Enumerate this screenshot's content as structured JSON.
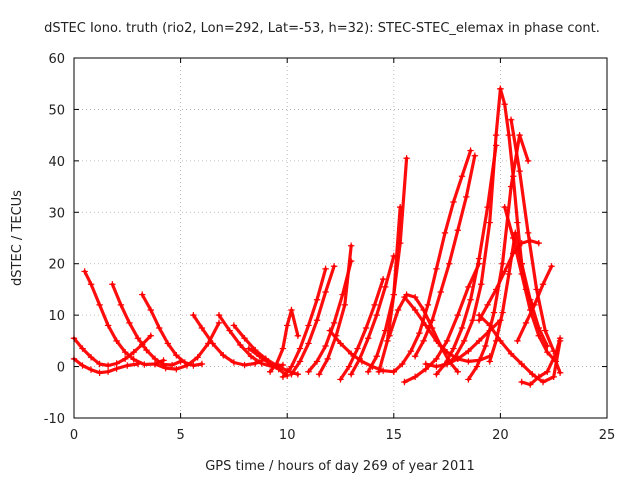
{
  "chart_data": {
    "type": "scatter",
    "title": "dSTEC Iono. truth (rio2, Lon=292, Lat=-53, h=32): STEC-STEC_elemax in phase cont.",
    "xlabel": "GPS time / hours of day 269 of year 2011",
    "ylabel": "dSTEC  / TECUs",
    "xlim": [
      0,
      25
    ],
    "ylim": [
      -10,
      60
    ],
    "xticks": [
      0,
      5,
      10,
      15,
      20,
      25
    ],
    "yticks": [
      -10,
      0,
      10,
      20,
      30,
      40,
      50,
      60
    ],
    "xtick_labels": [
      "0",
      "5",
      "10",
      "15",
      "20",
      "25"
    ],
    "ytick_labels": [
      "-10",
      "0",
      "10",
      "20",
      "30",
      "40",
      "50",
      "60"
    ],
    "grid": true,
    "marker": "+",
    "series_color": "#ff0000",
    "passes": [
      {
        "x": [
          0.0,
          0.4,
          0.8,
          1.2,
          1.6,
          2.0,
          2.4,
          2.8,
          3.2,
          3.6
        ],
        "y": [
          5.5,
          3.5,
          1.8,
          0.5,
          0.2,
          0.6,
          1.5,
          2.8,
          4.3,
          6.0
        ]
      },
      {
        "x": [
          0.0,
          0.4,
          0.8,
          1.2,
          1.6,
          2.0,
          2.5,
          3.0
        ],
        "y": [
          1.5,
          0.2,
          -0.6,
          -1.2,
          -1.0,
          -0.4,
          0.2,
          0.5
        ]
      },
      {
        "x": [
          0.5,
          0.8,
          1.2,
          1.6,
          2.0,
          2.4,
          2.8,
          3.3,
          3.8,
          4.2
        ],
        "y": [
          18.5,
          16.0,
          12.0,
          8.0,
          5.0,
          2.8,
          1.4,
          0.4,
          0.5,
          1.2
        ]
      },
      {
        "x": [
          1.8,
          2.2,
          2.6,
          3.0,
          3.4,
          3.8,
          4.2,
          4.6,
          5.0
        ],
        "y": [
          16.0,
          12.0,
          8.5,
          5.5,
          3.2,
          1.5,
          0.4,
          0.3,
          1.0
        ]
      },
      {
        "x": [
          3.2,
          3.6,
          4.0,
          4.4,
          4.8,
          5.2,
          5.6,
          6.0
        ],
        "y": [
          14.0,
          11.0,
          7.5,
          4.5,
          2.2,
          0.8,
          0.2,
          0.5
        ]
      },
      {
        "x": [
          3.8,
          4.3,
          4.8,
          5.3,
          5.8,
          6.3,
          6.8
        ],
        "y": [
          0.5,
          -0.3,
          -0.5,
          0.2,
          1.8,
          4.5,
          8.5
        ]
      },
      {
        "x": [
          5.6,
          6.0,
          6.5,
          7.0,
          7.5,
          8.0,
          8.5,
          9.0
        ],
        "y": [
          10.0,
          7.5,
          4.5,
          2.2,
          0.8,
          0.3,
          0.6,
          1.5
        ]
      },
      {
        "x": [
          6.8,
          7.3,
          7.8,
          8.3,
          8.8,
          9.3,
          9.8
        ],
        "y": [
          10.0,
          7.0,
          4.2,
          2.0,
          0.6,
          0.0,
          0.3
        ]
      },
      {
        "x": [
          7.5,
          8.0,
          8.5,
          9.0,
          9.5,
          10.0,
          10.5
        ],
        "y": [
          8.0,
          5.5,
          3.2,
          1.5,
          0.2,
          -0.8,
          -1.5
        ]
      },
      {
        "x": [
          8.2,
          8.7,
          9.2,
          9.6,
          10.0
        ],
        "y": [
          3.5,
          2.0,
          0.5,
          -0.5,
          -1.8
        ]
      },
      {
        "x": [
          9.2,
          9.5,
          9.8,
          10.0,
          10.2,
          10.5
        ],
        "y": [
          -1.0,
          0.5,
          3.5,
          8.0,
          11.0,
          6.0
        ]
      },
      {
        "x": [
          9.8,
          10.2,
          10.6,
          11.0,
          11.4,
          11.8
        ],
        "y": [
          -2.0,
          0.0,
          3.5,
          8.0,
          13.0,
          19.0
        ]
      },
      {
        "x": [
          10.2,
          10.6,
          11.0,
          11.4,
          11.8,
          12.2
        ],
        "y": [
          -1.5,
          1.0,
          4.5,
          9.0,
          14.5,
          19.5
        ]
      },
      {
        "x": [
          11.0,
          11.4,
          11.8,
          12.2,
          12.6,
          13.0
        ],
        "y": [
          -1.0,
          1.0,
          4.0,
          8.5,
          14.0,
          20.5
        ]
      },
      {
        "x": [
          11.5,
          11.9,
          12.3,
          12.7,
          13.0
        ],
        "y": [
          -1.5,
          1.5,
          6.0,
          12.0,
          23.5
        ]
      },
      {
        "x": [
          12.5,
          12.9,
          13.3,
          13.7,
          14.1,
          14.5
        ],
        "y": [
          -2.5,
          0.0,
          3.5,
          7.5,
          12.0,
          17.0
        ]
      },
      {
        "x": [
          13.0,
          13.4,
          13.8,
          14.2,
          14.6,
          15.0
        ],
        "y": [
          -1.5,
          1.5,
          5.5,
          10.0,
          15.5,
          21.5
        ]
      },
      {
        "x": [
          13.8,
          14.2,
          14.6,
          15.0,
          15.3,
          15.6
        ],
        "y": [
          -1.0,
          2.0,
          7.0,
          14.0,
          24.0,
          40.5
        ]
      },
      {
        "x": [
          14.3,
          14.7,
          15.0,
          15.3
        ],
        "y": [
          -1.0,
          5.0,
          14.0,
          31.0
        ]
      },
      {
        "x": [
          15.0,
          15.4,
          15.8,
          16.2,
          16.6,
          17.0,
          17.4,
          17.8,
          18.2,
          18.6
        ],
        "y": [
          -1.0,
          0.5,
          3.0,
          6.5,
          12.0,
          19.0,
          26.0,
          32.0,
          37.0,
          42.0
        ]
      },
      {
        "x": [
          14.8,
          15.2,
          15.6,
          16.0,
          16.4,
          16.8,
          17.2,
          17.6,
          18.0
        ],
        "y": [
          6.0,
          11.0,
          14.0,
          13.5,
          11.0,
          7.5,
          4.0,
          1.0,
          -1.0
        ]
      },
      {
        "x": [
          15.5,
          16.0,
          16.5,
          17.0,
          17.5,
          18.0,
          18.5,
          19.0
        ],
        "y": [
          -3.0,
          -2.0,
          -0.5,
          1.5,
          5.0,
          10.0,
          15.5,
          20.0
        ]
      },
      {
        "x": [
          16.0,
          16.4,
          16.8,
          17.2,
          17.6,
          18.0,
          18.4,
          18.8
        ],
        "y": [
          2.0,
          5.0,
          9.0,
          14.5,
          20.0,
          26.5,
          33.0,
          41.0
        ]
      },
      {
        "x": [
          17.0,
          17.4,
          17.8,
          18.2,
          18.6,
          19.0,
          19.4,
          19.8
        ],
        "y": [
          -1.5,
          0.5,
          3.5,
          7.5,
          13.0,
          21.0,
          31.0,
          43.0
        ]
      },
      {
        "x": [
          17.5,
          17.9,
          18.3,
          18.7,
          19.1,
          19.5,
          19.8,
          20.0
        ],
        "y": [
          0.5,
          2.0,
          5.0,
          9.0,
          16.0,
          28.0,
          45.0,
          54.0
        ]
      },
      {
        "x": [
          20.0,
          20.2,
          20.4,
          20.6,
          20.8,
          21.0,
          21.2,
          21.5
        ],
        "y": [
          54.0,
          51.0,
          45.0,
          37.0,
          28.0,
          20.0,
          15.0,
          12.0
        ]
      },
      {
        "x": [
          18.5,
          18.9,
          19.3,
          19.7,
          20.1,
          20.5,
          20.9,
          21.3
        ],
        "y": [
          -2.5,
          0.0,
          4.0,
          10.5,
          20.0,
          35.0,
          45.0,
          40.0
        ]
      },
      {
        "x": [
          19.5,
          19.8,
          20.1,
          20.4,
          20.7,
          21.0,
          21.4,
          21.8,
          22.2
        ],
        "y": [
          1.0,
          5.0,
          10.5,
          18.0,
          26.0,
          20.0,
          13.0,
          7.5,
          4.0
        ]
      },
      {
        "x": [
          19.0,
          19.4,
          19.8,
          20.2,
          20.6,
          21.0,
          21.4,
          21.8
        ],
        "y": [
          9.0,
          12.0,
          15.0,
          18.5,
          22.0,
          24.0,
          24.5,
          24.0
        ]
      },
      {
        "x": [
          20.2,
          20.6,
          21.0,
          21.4,
          21.8,
          22.2,
          22.6,
          22.8
        ],
        "y": [
          31.0,
          25.0,
          18.0,
          11.0,
          6.0,
          2.8,
          1.0,
          -1.2
        ]
      },
      {
        "x": [
          20.5,
          20.9,
          21.3,
          21.7,
          22.1,
          22.5
        ],
        "y": [
          48.0,
          38.0,
          26.0,
          15.0,
          7.0,
          3.0
        ]
      },
      {
        "x": [
          19.0,
          19.5,
          20.0,
          20.5,
          21.0,
          21.5,
          22.0,
          22.5,
          22.8
        ],
        "y": [
          10.0,
          8.0,
          5.0,
          2.5,
          0.5,
          -1.5,
          -3.0,
          -2.0,
          5.0
        ]
      },
      {
        "x": [
          21.0,
          21.4,
          21.8,
          22.2,
          22.6,
          22.8
        ],
        "y": [
          -3.0,
          -3.5,
          -2.0,
          -1.0,
          2.5,
          5.5
        ]
      },
      {
        "x": [
          20.8,
          21.2,
          21.6,
          22.0,
          22.4
        ],
        "y": [
          5.0,
          8.5,
          12.0,
          16.0,
          19.5
        ]
      },
      {
        "x": [
          12.0,
          12.5,
          13.0,
          13.5,
          14.0,
          14.5,
          15.0
        ],
        "y": [
          7.0,
          4.5,
          2.5,
          1.0,
          0.0,
          -0.8,
          -1.0
        ]
      },
      {
        "x": [
          15.5,
          16.0,
          16.5,
          17.0,
          17.5,
          18.0,
          18.5,
          19.0,
          19.5
        ],
        "y": [
          13.5,
          11.0,
          8.0,
          5.0,
          2.8,
          1.5,
          1.0,
          1.2,
          2.0
        ]
      },
      {
        "x": [
          16.5,
          17.0,
          17.5,
          18.0,
          18.5,
          19.0,
          19.5,
          20.0
        ],
        "y": [
          0.5,
          0.0,
          0.5,
          1.5,
          3.0,
          5.0,
          7.0,
          9.0
        ]
      }
    ]
  }
}
